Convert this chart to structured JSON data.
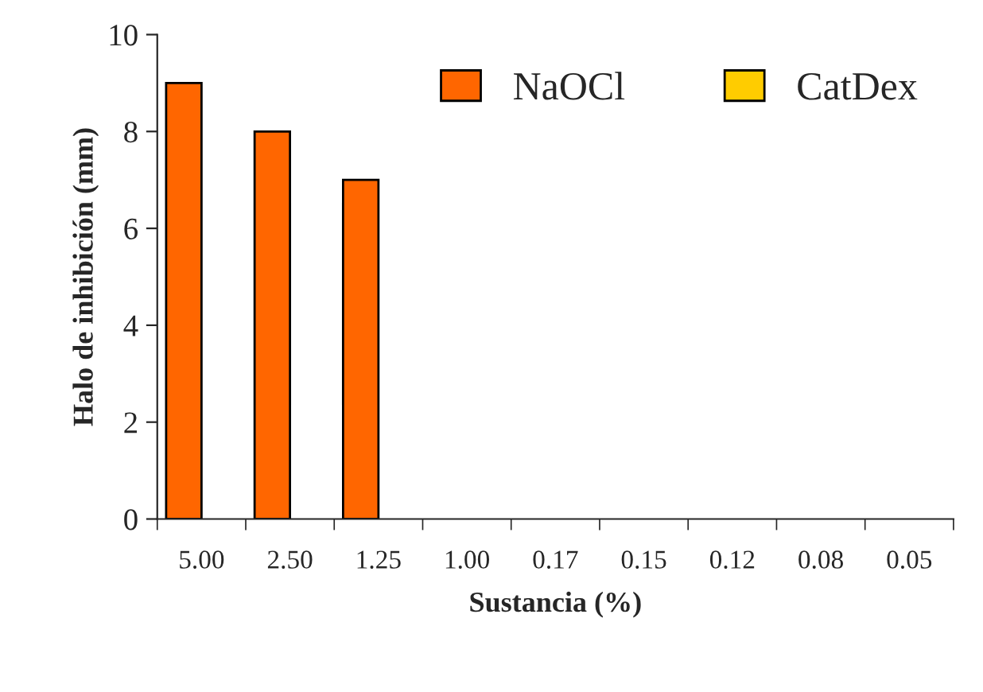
{
  "chart_data": {
    "type": "bar",
    "xlabel": "Sustancia (%)",
    "ylabel": "Halo de inhibición (mm)",
    "categories": [
      "5.00",
      "2.50",
      "1.25",
      "1.00",
      "0.17",
      "0.15",
      "0.12",
      "0.08",
      "0.05"
    ],
    "series": [
      {
        "name": "NaOCl",
        "color": "#ff6600",
        "values": [
          9,
          8,
          7,
          null,
          null,
          null,
          null,
          null,
          null
        ]
      },
      {
        "name": "CatDex",
        "color": "#ffcc00",
        "values": [
          null,
          null,
          null,
          null,
          null,
          null,
          null,
          null,
          null
        ]
      }
    ],
    "ylim": [
      0,
      10
    ],
    "yticks": [
      0,
      2,
      4,
      6,
      8,
      10
    ],
    "legend": "top right",
    "grid": false
  }
}
